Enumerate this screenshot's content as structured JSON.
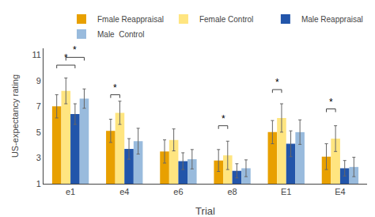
{
  "chart_data": {
    "type": "bar",
    "categories": [
      "e1",
      "e4",
      "e6",
      "e8",
      "E1",
      "E4"
    ],
    "series": [
      {
        "name": "Fmale Reappraisal",
        "color": "#E8A000",
        "values": [
          7.0,
          5.1,
          3.5,
          2.8,
          5.0,
          3.1
        ],
        "errors": [
          0.9,
          0.9,
          0.9,
          0.85,
          0.9,
          1.0
        ]
      },
      {
        "name": "Female Control",
        "color": "#FFE580",
        "values": [
          8.2,
          6.5,
          4.4,
          3.2,
          6.1,
          4.5
        ],
        "errors": [
          1.0,
          0.9,
          0.85,
          1.1,
          1.1,
          1.0
        ]
      },
      {
        "name": "Male Reappraisal",
        "color": "#2255AA",
        "values": [
          6.4,
          3.7,
          2.75,
          2.0,
          4.1,
          2.2
        ],
        "errors": [
          0.8,
          0.8,
          0.65,
          0.55,
          1.0,
          0.6
        ]
      },
      {
        "name": "Male  Control",
        "color": "#99BBDD",
        "values": [
          7.6,
          4.3,
          2.9,
          2.2,
          5.0,
          2.3
        ],
        "errors": [
          0.75,
          1.0,
          0.75,
          0.65,
          0.95,
          0.75
        ]
      }
    ],
    "xlabel": "Trial",
    "ylabel": "US-expectancy rating",
    "ylim": [
      1,
      11.5
    ],
    "yticks": [
      1,
      3,
      5,
      7,
      9,
      11
    ],
    "grid": false,
    "legend": "upper right",
    "annotations": [
      {
        "text": "*",
        "category": "e1",
        "between": [
          "Fmale Reappraisal",
          "Male Reappraisal"
        ],
        "y": 10.2,
        "dy": 0.25
      },
      {
        "text": "*",
        "category": "e1",
        "between": [
          "Female Control",
          "Male  Control"
        ],
        "y": 10.8,
        "dy": 0.25
      },
      {
        "text": "*",
        "category": "e4",
        "between": [
          "Fmale Reappraisal",
          "Female Control"
        ],
        "y": 7.9,
        "dy": 0.25
      },
      {
        "text": "*",
        "category": "e8",
        "between": [
          "Fmale Reappraisal",
          "Female Control"
        ],
        "y": 5.5,
        "dy": 0.25
      },
      {
        "text": "*",
        "category": "E1",
        "between": [
          "Fmale Reappraisal",
          "Female Control"
        ],
        "y": 8.3,
        "dy": 0.25
      },
      {
        "text": "*",
        "category": "E4",
        "between": [
          "Fmale Reappraisal",
          "Female Control"
        ],
        "y": 6.8,
        "dy": 0.25
      }
    ]
  }
}
